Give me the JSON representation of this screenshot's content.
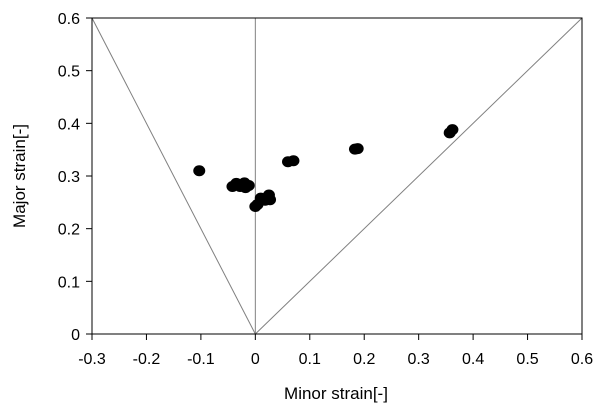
{
  "chart_data": {
    "type": "scatter",
    "xlabel": "Minor strain[-]",
    "ylabel": "Major strain[-]",
    "xlim": [
      -0.3,
      0.6
    ],
    "ylim": [
      0,
      0.6
    ],
    "x_ticks": [
      -0.3,
      -0.2,
      -0.1,
      0,
      0.1,
      0.2,
      0.3,
      0.4,
      0.5,
      0.6
    ],
    "y_ticks": [
      0,
      0.1,
      0.2,
      0.3,
      0.4,
      0.5,
      0.6
    ],
    "x_tick_labels": [
      "-0.3",
      "-0.2",
      "-0.1",
      "0",
      "0.1",
      "0.2",
      "0.3",
      "0.4",
      "0.5",
      "0.6"
    ],
    "y_tick_labels": [
      "0",
      "0.1",
      "0.2",
      "0.3",
      "0.4",
      "0.5",
      "0.6"
    ],
    "grid": false,
    "marker_color": "#000000",
    "reference_line_color": "#808080",
    "reference_lines": [
      {
        "x": [
          0,
          -0.3
        ],
        "y": [
          0,
          0.6
        ]
      },
      {
        "x": [
          0,
          0
        ],
        "y": [
          0,
          0.6
        ]
      },
      {
        "x": [
          0,
          0.6
        ],
        "y": [
          0,
          0.6
        ]
      }
    ],
    "series": [
      {
        "points": [
          {
            "x": -0.103,
            "y": 0.31
          },
          {
            "x": -0.042,
            "y": 0.28
          },
          {
            "x": -0.035,
            "y": 0.286
          },
          {
            "x": -0.028,
            "y": 0.28
          },
          {
            "x": -0.02,
            "y": 0.287
          },
          {
            "x": -0.018,
            "y": 0.278
          },
          {
            "x": -0.012,
            "y": 0.282
          },
          {
            "x": 0.0,
            "y": 0.242
          },
          {
            "x": 0.004,
            "y": 0.246
          },
          {
            "x": 0.01,
            "y": 0.258
          },
          {
            "x": 0.018,
            "y": 0.254
          },
          {
            "x": 0.025,
            "y": 0.264
          },
          {
            "x": 0.027,
            "y": 0.255
          },
          {
            "x": 0.06,
            "y": 0.327
          },
          {
            "x": 0.07,
            "y": 0.329
          },
          {
            "x": 0.183,
            "y": 0.351
          },
          {
            "x": 0.188,
            "y": 0.352
          },
          {
            "x": 0.357,
            "y": 0.382
          },
          {
            "x": 0.362,
            "y": 0.388
          }
        ]
      }
    ]
  }
}
